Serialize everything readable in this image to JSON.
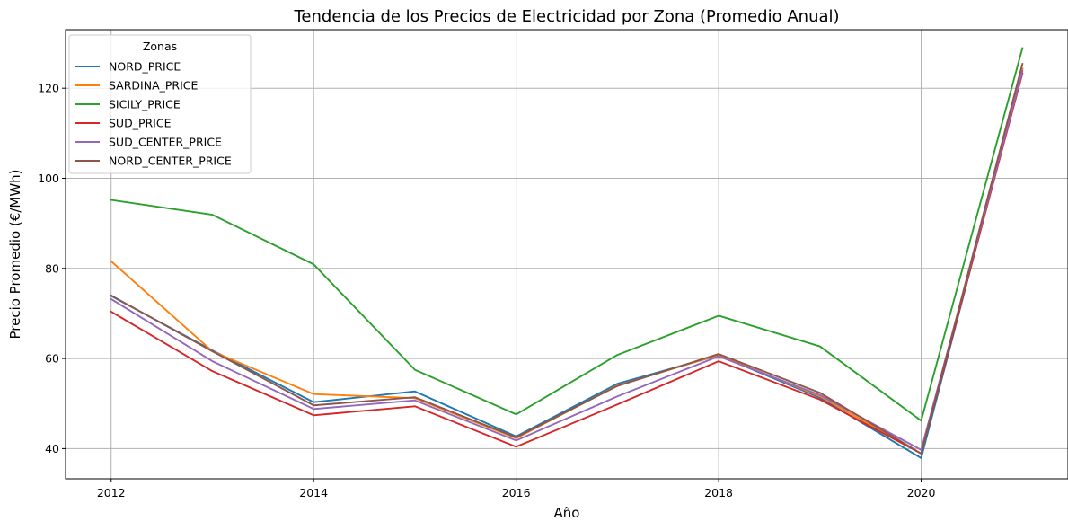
{
  "chart_data": {
    "type": "line",
    "title": "Tendencia de los Precios de Electricidad por Zona (Promedio Anual)",
    "xlabel": "Año",
    "ylabel": "Precio Promedio (€/MWh)",
    "x": [
      2012,
      2013,
      2014,
      2015,
      2016,
      2017,
      2018,
      2019,
      2020,
      2021
    ],
    "xticks": [
      2012,
      2014,
      2016,
      2018,
      2020
    ],
    "yticks": [
      40,
      60,
      80,
      100,
      120
    ],
    "xlim": [
      2011.55,
      2021.45
    ],
    "ylim": [
      33.3,
      133.0
    ],
    "grid": true,
    "legend": {
      "title": "Zonas",
      "position": "top-left"
    },
    "series": [
      {
        "name": "NORD_PRICE",
        "color": "#1f77b4",
        "values": [
          73.9,
          61.8,
          50.3,
          52.7,
          42.7,
          54.4,
          60.7,
          51.3,
          37.9,
          124.2
        ]
      },
      {
        "name": "SARDINA_PRICE",
        "color": "#ff7f0e",
        "values": [
          81.6,
          61.6,
          52.1,
          51.2,
          42.3,
          54.0,
          60.8,
          51.6,
          38.9,
          124.4
        ]
      },
      {
        "name": "SICILY_PRICE",
        "color": "#2ca02c",
        "values": [
          95.2,
          91.9,
          80.9,
          57.5,
          47.6,
          60.8,
          69.5,
          62.7,
          46.2,
          128.9
        ]
      },
      {
        "name": "SUD_PRICE",
        "color": "#d62728",
        "values": [
          70.4,
          57.2,
          47.4,
          49.4,
          40.4,
          49.8,
          59.4,
          50.9,
          38.9,
          123.3
        ]
      },
      {
        "name": "SUD_CENTER_PRICE",
        "color": "#9467bd",
        "values": [
          73.2,
          59.4,
          48.8,
          50.7,
          41.8,
          51.6,
          60.5,
          51.9,
          39.7,
          123.8
        ]
      },
      {
        "name": "NORD_CENTER_PRICE",
        "color": "#8c564b",
        "values": [
          74.0,
          61.6,
          49.6,
          51.4,
          42.5,
          53.9,
          61.0,
          52.4,
          38.9,
          125.4
        ]
      }
    ]
  }
}
